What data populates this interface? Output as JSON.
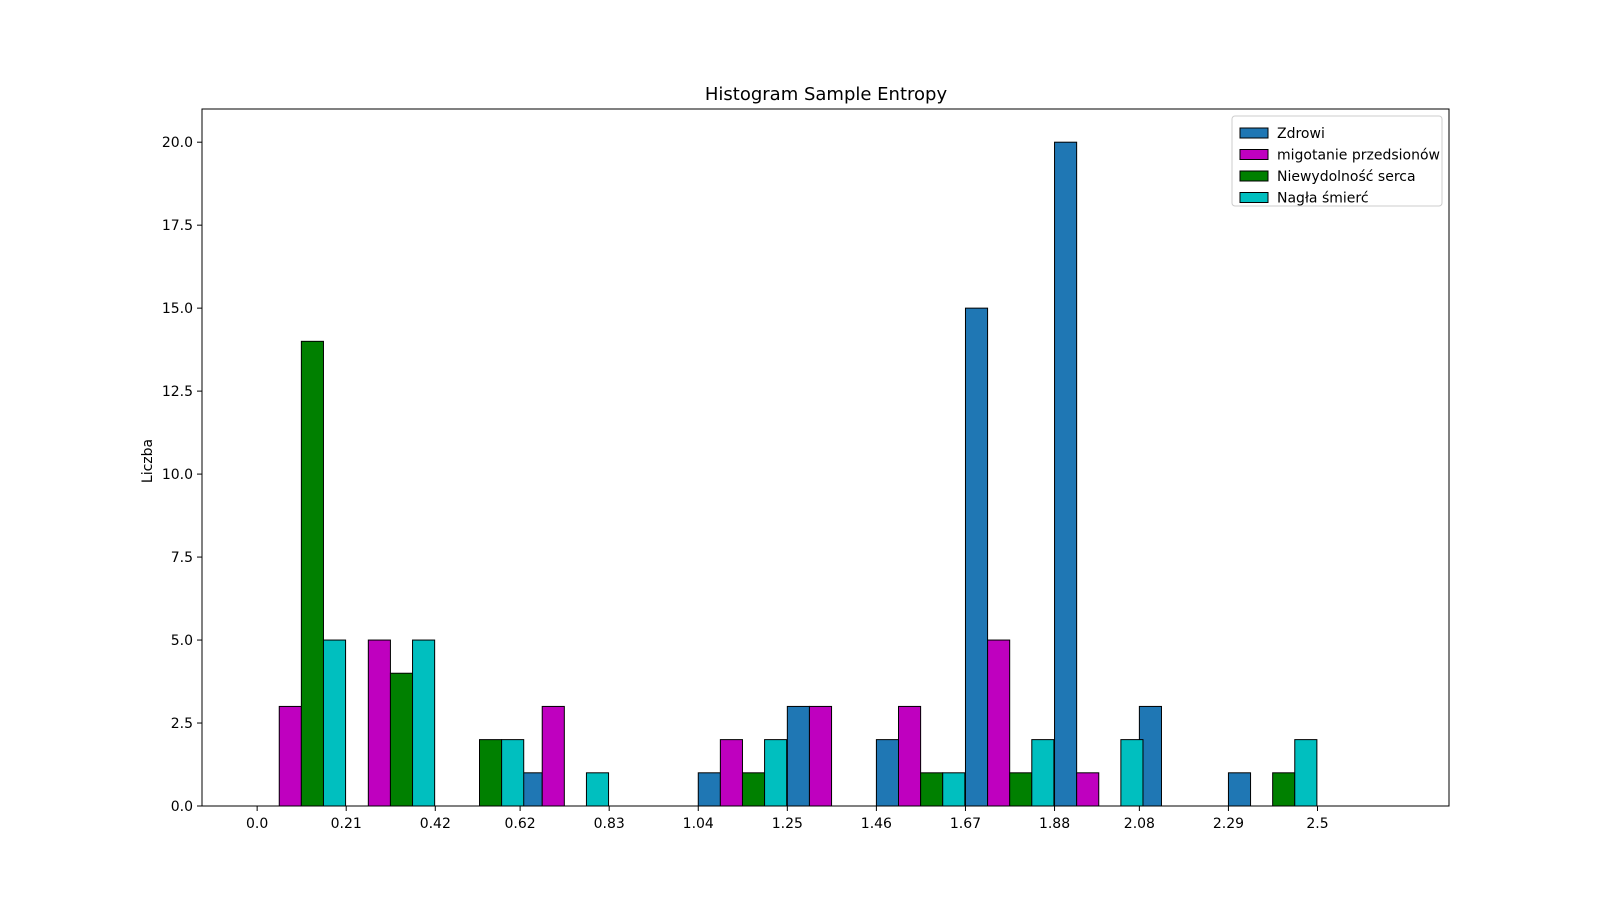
{
  "chart_data": {
    "type": "bar",
    "title": "Histogram Sample Entropy",
    "xlabel": "",
    "ylabel": "Liczba",
    "ylim": [
      0,
      21
    ],
    "xlim": [
      -0.13,
      2.81
    ],
    "x_ticks": [
      0.0,
      0.21,
      0.42,
      0.62,
      0.83,
      1.04,
      1.25,
      1.46,
      1.67,
      1.88,
      2.08,
      2.29,
      2.5
    ],
    "x_tick_labels": [
      "0.0",
      "0.21",
      "0.42",
      "0.62",
      "0.83",
      "1.04",
      "1.25",
      "1.46",
      "1.67",
      "1.88",
      "2.08",
      "2.29",
      "2.5"
    ],
    "y_ticks": [
      0.0,
      2.5,
      5.0,
      7.5,
      10.0,
      12.5,
      15.0,
      17.5,
      20.0
    ],
    "y_tick_labels": [
      "0.0",
      "2.5",
      "5.0",
      "7.5",
      "10.0",
      "12.5",
      "15.0",
      "17.5",
      "20.0"
    ],
    "bin_starts": [
      0.0,
      0.21,
      0.42,
      0.62,
      0.83,
      1.04,
      1.25,
      1.46,
      1.67,
      1.88,
      2.08,
      2.29,
      2.5
    ],
    "bin_width": 0.2085,
    "grid": false,
    "legend_position": "top-right",
    "series": [
      {
        "name": "Zdrowi",
        "color": "#1f77b4",
        "values": [
          0,
          0,
          0,
          1,
          0,
          1,
          3,
          2,
          15,
          20,
          3,
          1,
          0
        ]
      },
      {
        "name": "migotanie przedsionów",
        "color": "#bf00bf",
        "values": [
          3,
          5,
          0,
          3,
          0,
          2,
          3,
          3,
          5,
          1,
          0,
          0,
          0
        ]
      },
      {
        "name": "Niewydolność serca",
        "color": "#008000",
        "values": [
          14,
          4,
          2,
          0,
          0,
          1,
          0,
          1,
          1,
          0,
          0,
          1,
          0
        ]
      },
      {
        "name": "Nagła śmierć",
        "color": "#00bfbf",
        "values": [
          5,
          5,
          2,
          1,
          0,
          2,
          0,
          1,
          2,
          2,
          0,
          2,
          0
        ]
      }
    ]
  }
}
